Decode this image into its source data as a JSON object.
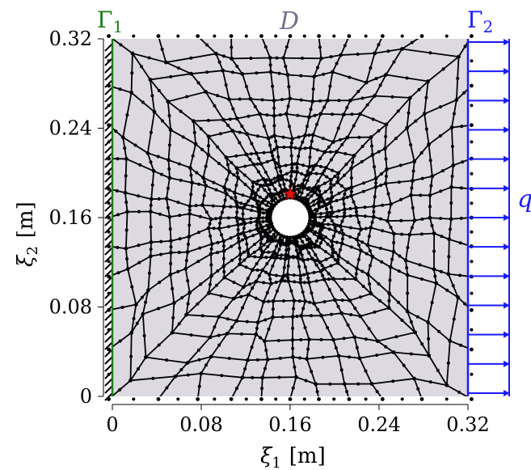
{
  "figure": {
    "domain_label": "D",
    "boundary_left": {
      "label": "Γ",
      "sub": "1",
      "color": "#1a7f1a"
    },
    "boundary_right": {
      "label": "Γ",
      "sub": "2",
      "color": "#1a1aff"
    },
    "load_label": "q",
    "xlabel": {
      "sym": "ξ",
      "sub": "1",
      "unit": "[m]"
    },
    "ylabel": {
      "sym": "ξ",
      "sub": "2",
      "unit": "[m]"
    },
    "x_ticks": [
      "0",
      "0.08",
      "0.16",
      "0.24",
      "0.32"
    ],
    "y_ticks": [
      "0",
      "0.08",
      "0.16",
      "0.24",
      "0.32"
    ],
    "xlim": [
      0,
      0.32
    ],
    "ylim": [
      0,
      0.32
    ],
    "hole": {
      "cx": 0.16,
      "cy": 0.16,
      "r": 0.018
    },
    "marker": {
      "x": 0.16,
      "y": 0.181,
      "color": "#e01010"
    },
    "domain_fill": "#dcd9e0",
    "mesh_color": "#000000",
    "load_color": "#1a1aff",
    "load_arrow_count": 13
  }
}
